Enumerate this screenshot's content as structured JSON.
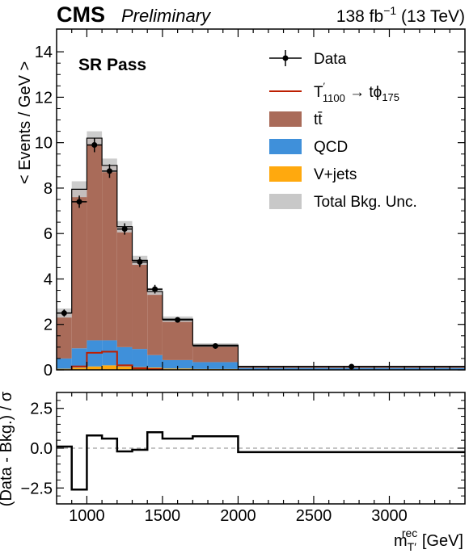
{
  "header": {
    "experiment": "CMS",
    "status": "Preliminary",
    "lumi": "138 fb",
    "lumi_exp": "−1",
    "energy": " (13 TeV)"
  },
  "region_label": "SR Pass",
  "legend": {
    "data": "Data",
    "signal_main": "T",
    "signal_prime": "′",
    "signal_sub1": "1100",
    "signal_mid": " → tϕ",
    "signal_sub2": "175",
    "ttbar": "tt̄",
    "qcd": "QCD",
    "vjets": "V+jets",
    "unc": "Total Bkg. Unc."
  },
  "colors": {
    "ttbar": "#a96b59",
    "qcd": "#3f90da",
    "vjets": "#ffa90e",
    "unc": "#c8c8c8",
    "signal": "#bd1f01",
    "data": "#000000"
  },
  "chart_data": [
    {
      "type": "bar",
      "subtype": "stacked-histogram",
      "ylabel": "< Events / GeV >",
      "xlim": [
        800,
        3500
      ],
      "ylim": [
        0,
        15
      ],
      "yticks": [
        0,
        2,
        4,
        6,
        8,
        10,
        12,
        14
      ],
      "bin_edges": [
        800,
        900,
        1000,
        1100,
        1200,
        1300,
        1400,
        1500,
        1700,
        2000,
        3500
      ],
      "series": [
        {
          "name": "V+jets",
          "values": [
            0.05,
            0.1,
            0.15,
            0.2,
            0.15,
            0.12,
            0.1,
            0.06,
            0.04,
            0.01
          ]
        },
        {
          "name": "QCD",
          "values": [
            0.45,
            0.85,
            1.15,
            1.1,
            0.85,
            0.8,
            0.55,
            0.37,
            0.3,
            0.07
          ]
        },
        {
          "name": "tt̄",
          "values": [
            2.0,
            7.0,
            8.9,
            7.7,
            5.3,
            3.9,
            2.8,
            1.8,
            0.75,
            0.07
          ]
        },
        {
          "name": "Total Bkg. Unc.",
          "values": [
            0.2,
            0.35,
            0.3,
            0.3,
            0.25,
            0.2,
            0.15,
            0.12,
            0.08,
            0.02
          ]
        },
        {
          "name": "T′1100 → tϕ175",
          "values": [
            0.0,
            0.15,
            0.75,
            0.8,
            0.2,
            0.07,
            0.03,
            0.0,
            0.0,
            0.0
          ]
        }
      ],
      "data_points": {
        "name": "Data",
        "x": [
          850,
          950,
          1050,
          1150,
          1250,
          1350,
          1450,
          1600,
          1850,
          2750
        ],
        "y": [
          2.5,
          7.4,
          9.9,
          8.75,
          6.2,
          4.75,
          3.55,
          2.2,
          1.05,
          0.14
        ],
        "yerr": [
          0.16,
          0.27,
          0.32,
          0.3,
          0.25,
          0.22,
          0.19,
          0.1,
          0.06,
          0.01
        ]
      },
      "legend_position": "top-right"
    },
    {
      "type": "line",
      "subtype": "step",
      "xlabel": "m_T′^rec [GeV]",
      "ylabel": "(Data - Bkg.) / σ",
      "xlim": [
        800,
        3500
      ],
      "ylim": [
        -3.5,
        3.5
      ],
      "yticks": [
        -2.5,
        0.0,
        2.5
      ],
      "xticks": [
        1000,
        1500,
        2000,
        2500,
        3000
      ],
      "bin_edges": [
        800,
        900,
        1000,
        1100,
        1200,
        1300,
        1400,
        1500,
        1700,
        2000,
        3500
      ],
      "values": [
        0.1,
        -2.6,
        0.8,
        0.6,
        -0.2,
        -0.1,
        1.0,
        0.6,
        0.75,
        -0.25
      ],
      "reference_line": 0
    }
  ],
  "tick_labels": {
    "main_y": [
      "0",
      "2",
      "4",
      "6",
      "8",
      "10",
      "12",
      "14"
    ],
    "ratio_y": [
      "−2.5",
      "0.0",
      "2.5"
    ],
    "x": [
      "1000",
      "1500",
      "2000",
      "2500",
      "3000"
    ]
  },
  "axis_labels": {
    "main_y": "< Events / GeV >",
    "ratio_y": "(Data - Bkg.) / σ",
    "x_main": "m",
    "x_sub": "T′",
    "x_sup": "rec",
    "x_unit": " [GeV]"
  }
}
